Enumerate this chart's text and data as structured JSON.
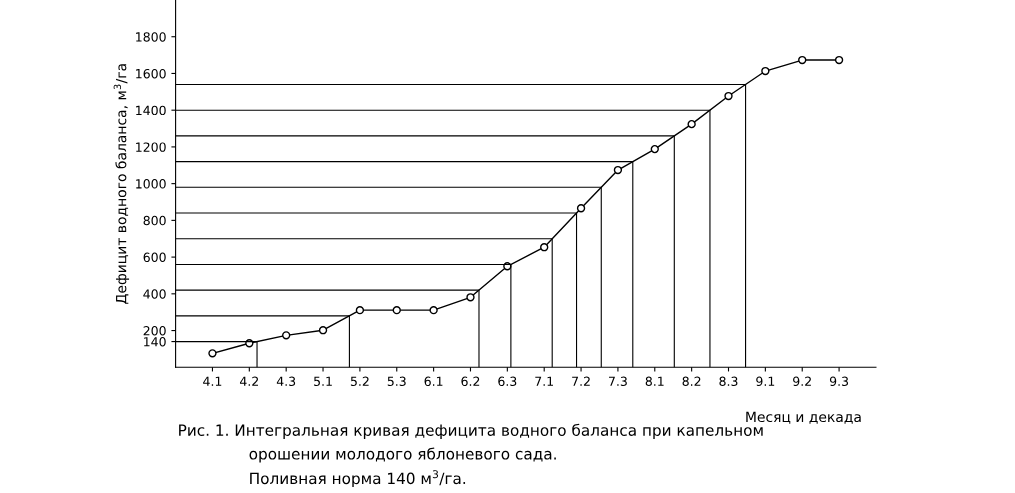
{
  "chart_data": {
    "type": "line",
    "categories": [
      "4.1",
      "4.2",
      "4.3",
      "5.1",
      "5.2",
      "5.3",
      "6.1",
      "6.2",
      "6.3",
      "7.1",
      "7.2",
      "7.3",
      "8.1",
      "8.2",
      "8.3",
      "9.1",
      "9.2",
      "9.3"
    ],
    "series": [
      {
        "color": "#000000",
        "values": [
          76,
          131,
          174,
          202,
          311,
          311,
          311,
          381,
          550,
          654,
          866,
          1074,
          1188,
          1324,
          1477,
          1613,
          1673,
          1673
        ]
      }
    ],
    "marker": "circle",
    "ylim": [
      0,
      2000
    ],
    "yticks": [
      140,
      200,
      400,
      600,
      800,
      1000,
      1200,
      1400,
      1600,
      1800
    ],
    "ylabel": "Дефицит водного баланса, м$^{3}$/га",
    "xlabel": "Месяц и декада",
    "ref_lines": [
      {
        "axis": "y",
        "value": 140
      },
      {
        "axis": "y",
        "value": 280
      },
      {
        "axis": "y",
        "value": 420
      },
      {
        "axis": "y",
        "value": 560
      },
      {
        "axis": "y",
        "value": 700
      },
      {
        "axis": "y",
        "value": 840
      },
      {
        "axis": "y",
        "value": 980
      },
      {
        "axis": "y",
        "value": 1120
      },
      {
        "axis": "y",
        "value": 1260
      },
      {
        "axis": "y",
        "value": 1400
      },
      {
        "axis": "y",
        "value": 1540
      }
    ],
    "annotations": [
      "Рис. 1. Интегральная кривая дефицита водного баланса при капельном",
      "орошении молодого яблоневого сада.",
      "Поливная норма 140 м$^{3}$/га."
    ],
    "grid": false,
    "legend": false
  }
}
